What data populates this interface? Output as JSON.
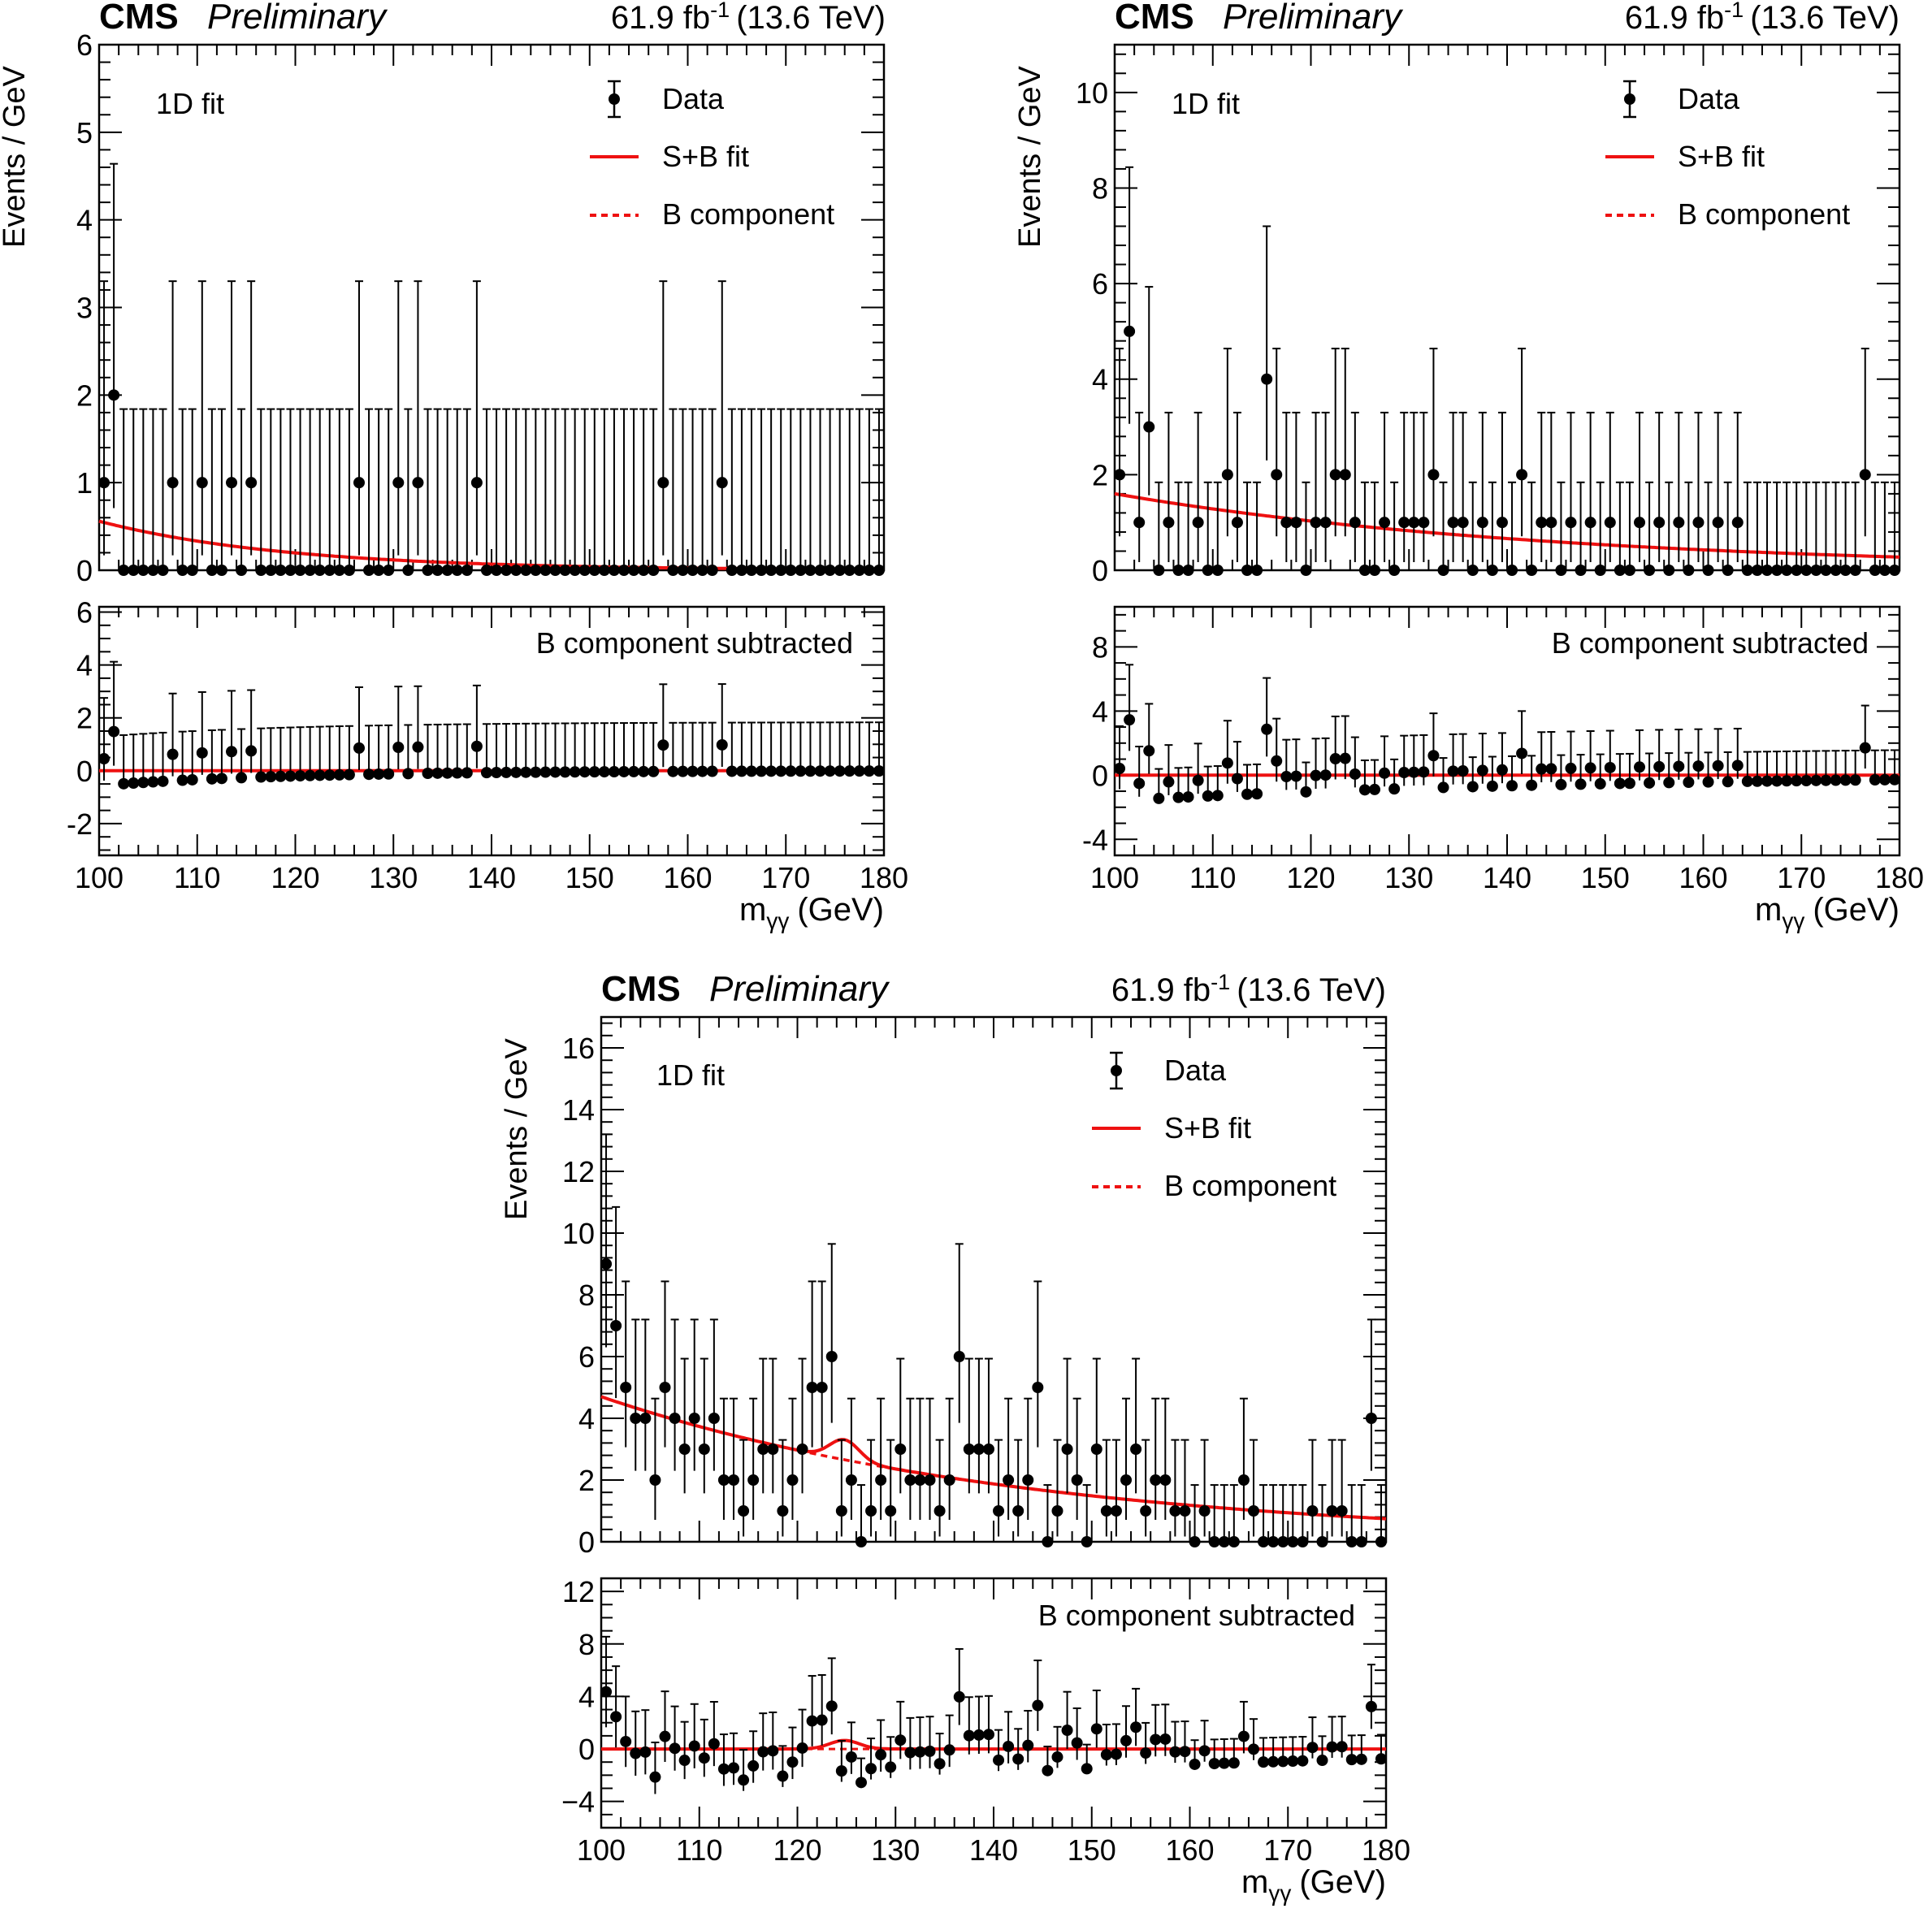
{
  "colors": {
    "data": "#000000",
    "fit": "#ee1111"
  },
  "panel_labels": {
    "cms": "CMS",
    "preliminary": "Preliminary",
    "lumi_value": "61.9 fb",
    "lumi_exp": "-1",
    "lumi_energy": "(13.6 TeV)",
    "fit_label": "1D fit",
    "ylabel": "Events / GeV",
    "xlabel_main": "m",
    "xlabel_sub": "γγ",
    "xlabel_unit": "(GeV)",
    "legend_data": "Data",
    "legend_sb": "S+B fit",
    "legend_b": "B component",
    "ratio_label": "B component subtracted"
  },
  "chart_data": [
    {
      "type": "scatter",
      "bin_width": 1.0,
      "x_first_bin_center": 100.5,
      "xlim": [
        100,
        180
      ],
      "xticks": [
        "100",
        "110",
        "120",
        "130",
        "140",
        "150",
        "160",
        "170",
        "180"
      ],
      "xlabel": "mγγ (GeV)",
      "ylabel": "Events / GeV",
      "ylim": [
        0,
        6
      ],
      "yticks": [
        "0",
        "1",
        "2",
        "3",
        "4",
        "5",
        "6"
      ],
      "ratio_ylim": [
        -3.2,
        6.2
      ],
      "ratio_yticks": [
        "-2",
        "0",
        "2",
        "4",
        "6"
      ],
      "ratio_ytick_values": [
        -2,
        0,
        2,
        4,
        6
      ],
      "counts": [
        1,
        2,
        0,
        0,
        0,
        0,
        0,
        1,
        0,
        0,
        1,
        0,
        0,
        1,
        0,
        1,
        0,
        0,
        0,
        0,
        0,
        0,
        0,
        0,
        0,
        0,
        1,
        0,
        0,
        0,
        1,
        0,
        1,
        0,
        0,
        0,
        0,
        0,
        1,
        0,
        0,
        0,
        0,
        0,
        0,
        0,
        0,
        0,
        0,
        0,
        0,
        0,
        0,
        0,
        0,
        0,
        0,
        1,
        0,
        0,
        0,
        0,
        0,
        1,
        0,
        0,
        0,
        0,
        0,
        0,
        0,
        0,
        0,
        0,
        0,
        0,
        0,
        0,
        0,
        0
      ],
      "series": [
        {
          "name": "Data",
          "values_ref": "counts"
        },
        {
          "name": "S+B fit",
          "b_a": 0.56,
          "b_k": 0.052,
          "sig_amp": 0.0,
          "sig_mu": 125.0,
          "sig_sigma": 1.6
        },
        {
          "name": "B component",
          "b_a": 0.56,
          "b_k": 0.052
        }
      ]
    },
    {
      "type": "scatter",
      "bin_width": 1.0,
      "x_first_bin_center": 100.5,
      "xlim": [
        100,
        180
      ],
      "xticks": [
        "100",
        "110",
        "120",
        "130",
        "140",
        "150",
        "160",
        "170",
        "180"
      ],
      "xlabel": "mγγ (GeV)",
      "ylabel": "Events / GeV",
      "ylim": [
        0,
        11
      ],
      "yticks": [
        "0",
        "2",
        "4",
        "6",
        "8",
        "10"
      ],
      "ratio_ylim": [
        -5,
        10.5
      ],
      "ratio_yticks": [
        "-4",
        "0",
        "4",
        "8"
      ],
      "ratio_ytick_values": [
        -4,
        0,
        4,
        8
      ],
      "counts": [
        2,
        5,
        1,
        3,
        0,
        1,
        0,
        0,
        1,
        0,
        0,
        2,
        1,
        0,
        0,
        4,
        2,
        1,
        1,
        0,
        1,
        1,
        2,
        2,
        1,
        0,
        0,
        1,
        0,
        1,
        1,
        1,
        2,
        0,
        1,
        1,
        0,
        1,
        0,
        1,
        0,
        2,
        0,
        1,
        1,
        0,
        1,
        0,
        1,
        0,
        1,
        0,
        0,
        1,
        0,
        1,
        0,
        1,
        0,
        1,
        0,
        1,
        0,
        1,
        0,
        0,
        0,
        0,
        0,
        0,
        0,
        0,
        0,
        0,
        0,
        0,
        2,
        0,
        0,
        0
      ],
      "series": [
        {
          "name": "Data",
          "values_ref": "counts"
        },
        {
          "name": "S+B fit",
          "b_a": 1.6,
          "b_k": 0.022,
          "sig_amp": 0.0,
          "sig_mu": 125.0,
          "sig_sigma": 1.6
        },
        {
          "name": "B component",
          "b_a": 1.6,
          "b_k": 0.022
        }
      ]
    },
    {
      "type": "scatter",
      "bin_width": 1.0,
      "x_first_bin_center": 100.5,
      "xlim": [
        100,
        180
      ],
      "xticks": [
        "100",
        "110",
        "120",
        "130",
        "140",
        "150",
        "160",
        "170",
        "180"
      ],
      "xlabel": "mγγ (GeV)",
      "ylabel": "Events / GeV",
      "ylim": [
        0,
        17
      ],
      "yticks": [
        "0",
        "2",
        "4",
        "6",
        "8",
        "10",
        "12",
        "14",
        "16"
      ],
      "ratio_ylim": [
        -6,
        13
      ],
      "ratio_yticks": [
        "−4",
        "0",
        "4",
        "8",
        "12"
      ],
      "ratio_ytick_values": [
        -4,
        0,
        4,
        8,
        12
      ],
      "counts": [
        9,
        7,
        5,
        4,
        4,
        2,
        5,
        4,
        3,
        4,
        3,
        4,
        2,
        2,
        1,
        2,
        3,
        3,
        1,
        2,
        3,
        5,
        5,
        6,
        1,
        2,
        0,
        1,
        2,
        1,
        3,
        2,
        2,
        2,
        1,
        2,
        6,
        3,
        3,
        3,
        1,
        2,
        1,
        2,
        5,
        0,
        1,
        3,
        2,
        0,
        3,
        1,
        1,
        2,
        3,
        1,
        2,
        2,
        1,
        1,
        0,
        1,
        0,
        0,
        0,
        2,
        1,
        0,
        0,
        0,
        0,
        0,
        1,
        0,
        1,
        1,
        0,
        0,
        4,
        0
      ],
      "series": [
        {
          "name": "Data",
          "values_ref": "counts"
        },
        {
          "name": "S+B fit",
          "b_a": 4.7,
          "b_k": 0.023,
          "sig_amp": 0.65,
          "sig_mu": 124.8,
          "sig_sigma": 1.5
        },
        {
          "name": "B component",
          "b_a": 4.7,
          "b_k": 0.023
        }
      ]
    }
  ]
}
